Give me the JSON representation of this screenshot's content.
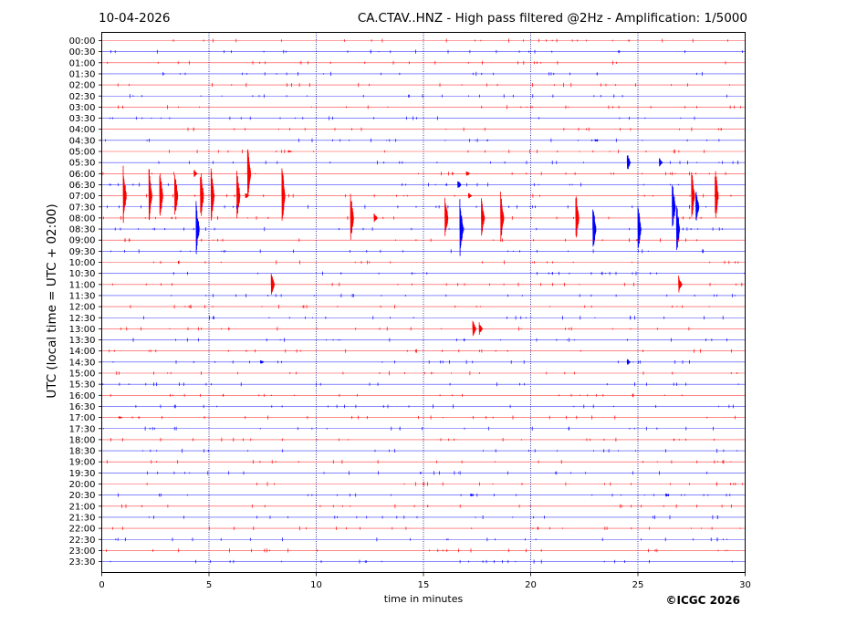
{
  "header": {
    "date": "10-04-2026",
    "title": "CA.CTAV..HNZ - High pass filtered @2Hz - Amplification: 1/5000"
  },
  "footer": {
    "copyright": "©ICGC 2026"
  },
  "chart_data": {
    "type": "line",
    "title": "CA.CTAV..HNZ - High pass filtered @2Hz - Amplification: 1/5000",
    "xlabel": "time in minutes",
    "ylabel": "UTC (local time = UTC + 02:00)",
    "xlim": [
      0,
      30
    ],
    "xticks": [
      0,
      5,
      10,
      15,
      20,
      25,
      30
    ],
    "vertical_gridlines": [
      5,
      10,
      15,
      20,
      25
    ],
    "row_labels": [
      "00:00",
      "00:30",
      "01:00",
      "01:30",
      "02:00",
      "02:30",
      "03:00",
      "03:30",
      "04:00",
      "04:30",
      "05:00",
      "05:30",
      "06:00",
      "06:30",
      "07:00",
      "07:30",
      "08:00",
      "08:30",
      "09:00",
      "09:30",
      "10:00",
      "10:30",
      "11:00",
      "11:30",
      "12:00",
      "12:30",
      "13:00",
      "13:30",
      "14:00",
      "14:30",
      "15:00",
      "15:30",
      "16:00",
      "16:30",
      "17:00",
      "17:30",
      "18:00",
      "18:30",
      "19:00",
      "19:30",
      "20:00",
      "20:30",
      "21:00",
      "21:30",
      "22:00",
      "22:30",
      "23:00",
      "23:30"
    ],
    "trace_colors": [
      "#ff0000",
      "#0000ff"
    ],
    "events": [
      {
        "row": "04:30",
        "minute": 23.0,
        "amplitude": 0.1
      },
      {
        "row": "05:00",
        "minute": 8.7,
        "amplitude": 0.12
      },
      {
        "row": "05:30",
        "minute": 24.5,
        "amplitude": 0.9
      },
      {
        "row": "05:30",
        "minute": 26.0,
        "amplitude": 0.4
      },
      {
        "row": "06:00",
        "minute": 4.3,
        "amplitude": 0.4
      },
      {
        "row": "06:00",
        "minute": 17.0,
        "amplitude": 0.3
      },
      {
        "row": "06:00",
        "minute": 6.8,
        "amplitude": 3.0
      },
      {
        "row": "06:30",
        "minute": 16.6,
        "amplitude": 0.5
      },
      {
        "row": "07:00",
        "minute": 6.7,
        "amplitude": 0.3
      },
      {
        "row": "07:00",
        "minute": 17.1,
        "amplitude": 0.3
      },
      {
        "row": "07:00",
        "minute": 1.0,
        "amplitude": 2.8
      },
      {
        "row": "07:00",
        "minute": 2.2,
        "amplitude": 2.8
      },
      {
        "row": "07:00",
        "minute": 2.7,
        "amplitude": 2.8
      },
      {
        "row": "07:00",
        "minute": 3.4,
        "amplitude": 2.8
      },
      {
        "row": "07:00",
        "minute": 4.6,
        "amplitude": 2.8
      },
      {
        "row": "07:00",
        "minute": 5.1,
        "amplitude": 2.5
      },
      {
        "row": "07:00",
        "minute": 6.3,
        "amplitude": 2.8
      },
      {
        "row": "07:00",
        "minute": 8.4,
        "amplitude": 3.0
      },
      {
        "row": "07:00",
        "minute": 27.5,
        "amplitude": 2.5
      },
      {
        "row": "07:00",
        "minute": 28.6,
        "amplitude": 2.8
      },
      {
        "row": "07:30",
        "minute": 26.6,
        "amplitude": 2.5
      },
      {
        "row": "07:30",
        "minute": 27.7,
        "amplitude": 1.7
      },
      {
        "row": "08:00",
        "minute": 11.6,
        "amplitude": 2.5
      },
      {
        "row": "08:00",
        "minute": 16.0,
        "amplitude": 2.3
      },
      {
        "row": "08:00",
        "minute": 17.7,
        "amplitude": 1.8
      },
      {
        "row": "08:00",
        "minute": 18.6,
        "amplitude": 2.5
      },
      {
        "row": "08:00",
        "minute": 22.1,
        "amplitude": 2.5
      },
      {
        "row": "08:00",
        "minute": 12.7,
        "amplitude": 0.5
      },
      {
        "row": "08:30",
        "minute": 4.4,
        "amplitude": 2.6
      },
      {
        "row": "08:30",
        "minute": 16.7,
        "amplitude": 3.0
      },
      {
        "row": "08:30",
        "minute": 22.9,
        "amplitude": 2.6
      },
      {
        "row": "08:30",
        "minute": 25.0,
        "amplitude": 2.4
      },
      {
        "row": "08:30",
        "minute": 26.8,
        "amplitude": 2.6
      },
      {
        "row": "11:00",
        "minute": 7.9,
        "amplitude": 1.2
      },
      {
        "row": "11:00",
        "minute": 26.9,
        "amplitude": 0.9
      },
      {
        "row": "13:00",
        "minute": 17.3,
        "amplitude": 0.8
      },
      {
        "row": "13:00",
        "minute": 17.6,
        "amplitude": 0.6
      },
      {
        "row": "14:30",
        "minute": 24.5,
        "amplitude": 0.3
      },
      {
        "row": "14:30",
        "minute": 7.4,
        "amplitude": 0.2
      },
      {
        "row": "17:00",
        "minute": 0.8,
        "amplitude": 0.15
      },
      {
        "row": "20:30",
        "minute": 17.2,
        "amplitude": 0.15
      },
      {
        "row": "20:30",
        "minute": 26.3,
        "amplitude": 0.15
      }
    ]
  }
}
